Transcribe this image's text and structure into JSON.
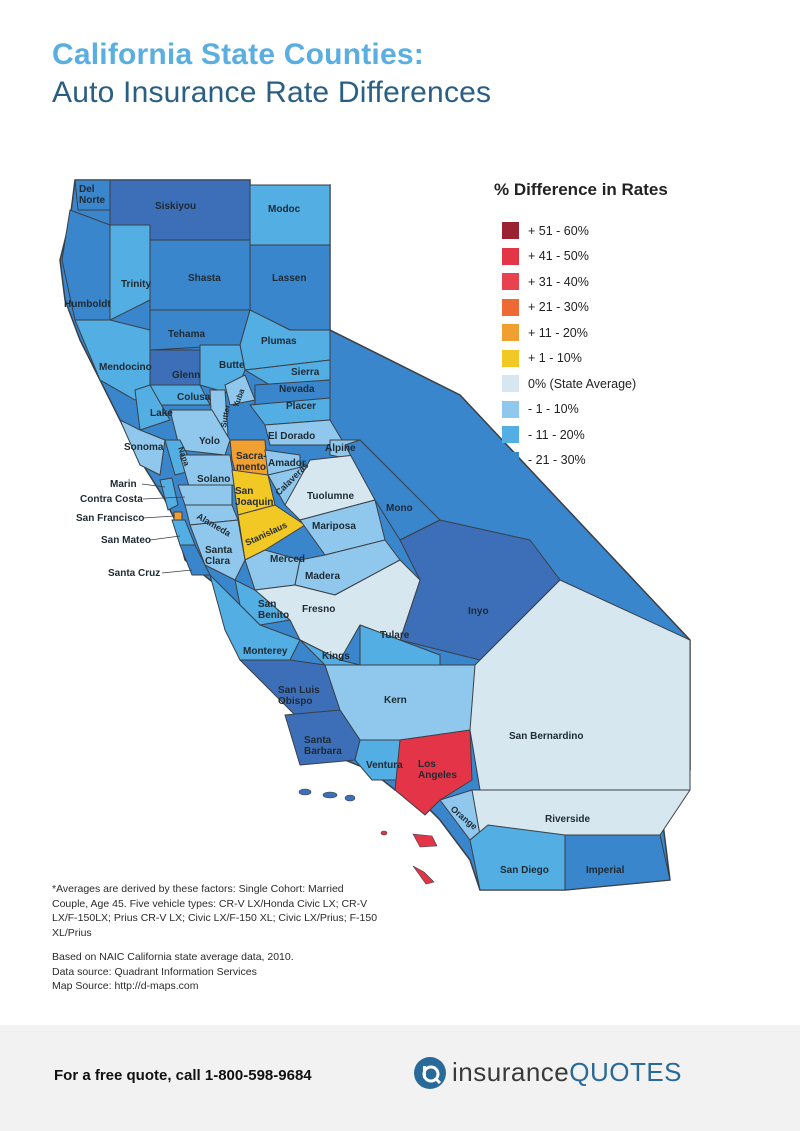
{
  "header": {
    "title_line1": "California State Counties:",
    "title_line2": "Auto Insurance Rate Differences"
  },
  "legend": {
    "title": "% Difference in Rates",
    "items": [
      {
        "label": "+ 51 - 60%",
        "color": "#9b2230"
      },
      {
        "label": "+ 41 - 50%",
        "color": "#e33547"
      },
      {
        "label": "+ 31 - 40%",
        "color": "#e8424f"
      },
      {
        "label": "+ 21 - 30%",
        "color": "#ee6a35"
      },
      {
        "label": "+ 11 - 20%",
        "color": "#f0a030"
      },
      {
        "label": "+ 1 - 10%",
        "color": "#f2c824"
      },
      {
        "label": "0% (State Average)",
        "color": "#d6e7f0"
      },
      {
        "label": "- 1 - 10%",
        "color": "#8fc8ec"
      },
      {
        "label": "- 11 - 20%",
        "color": "#52aee3"
      },
      {
        "label": "- 21 - 30%",
        "color": "#3a86cc"
      }
    ]
  },
  "map": {
    "colors": {
      "dark_blue": "#3d6fb8",
      "blue": "#3a86cc",
      "mid_blue": "#52aee3",
      "light_blue": "#8fc8ec",
      "avg": "#d6e7f0",
      "yellow": "#f2c824",
      "orange": "#f0a030",
      "red": "#e33547"
    },
    "counties": {
      "del_norte": "Del\nNorte",
      "siskiyou": "Siskiyou",
      "modoc": "Modoc",
      "humboldt": "Humboldt",
      "trinity": "Trinity",
      "shasta": "Shasta",
      "lassen": "Lassen",
      "tehama": "Tehama",
      "plumas": "Plumas",
      "mendocino": "Mendocino",
      "glenn": "Glenn",
      "butte": "Butte",
      "sierra": "Sierra",
      "nevada": "Nevada",
      "colusa": "Colusa",
      "sutter": "Sutter",
      "yuba": "Yuba",
      "placer": "Placer",
      "lake": "Lake",
      "sonoma": "Sonoma",
      "yolo": "Yolo",
      "napa": "Napa",
      "el_dorado": "El Dorado",
      "alpine": "Alpine",
      "sacramento": "Sacra-\nmento",
      "amador": "Amador",
      "marin": "Marin",
      "solano": "Solano",
      "contra_costa": "Contra Costa",
      "san_joaquin": "San\nJoaquin",
      "calaveras": "Calaveras",
      "tuolumne": "Tuolumne",
      "mono": "Mono",
      "san_francisco": "San Francisco",
      "alameda": "Alameda",
      "stanislaus": "Stanislaus",
      "san_mateo": "San Mateo",
      "mariposa": "Mariposa",
      "santa_clara": "Santa\nClara",
      "merced": "Merced",
      "santa_cruz": "Santa Cruz",
      "madera": "Madera",
      "inyo": "Inyo",
      "san_benito": "San\nBenito",
      "fresno": "Fresno",
      "tulare": "Tulare",
      "monterey": "Monterey",
      "kings": "Kings",
      "san_luis_obispo": "San Luis\nObispo",
      "kern": "Kern",
      "san_bernardino": "San Bernardino",
      "santa_barbara": "Santa\nBarbara",
      "ventura": "Ventura",
      "los_angeles": "Los\nAngeles",
      "orange": "Orange",
      "riverside": "Riverside",
      "san_diego": "San Diego",
      "imperial": "Imperial"
    }
  },
  "notes": {
    "factors": "*Averages are derived by these factors: Single Cohort: Married Couple, Age 45. Five vehicle types: CR-V LX/Honda Civic LX; CR-V LX/F-150LX; Prius CR-V LX; Civic LX/F-150 XL; Civic LX/Prius; F-150 XL/Prius",
    "basis": "Based on NAIC California state average data, 2010.",
    "data_source": "Data source: Quadrant Information Services",
    "map_source": "Map Source: http://d-maps.com"
  },
  "footer": {
    "cta": "For a free quote, call 1-800-598-9684",
    "logo_part1": "insurance",
    "logo_part2": "QUOTES"
  }
}
